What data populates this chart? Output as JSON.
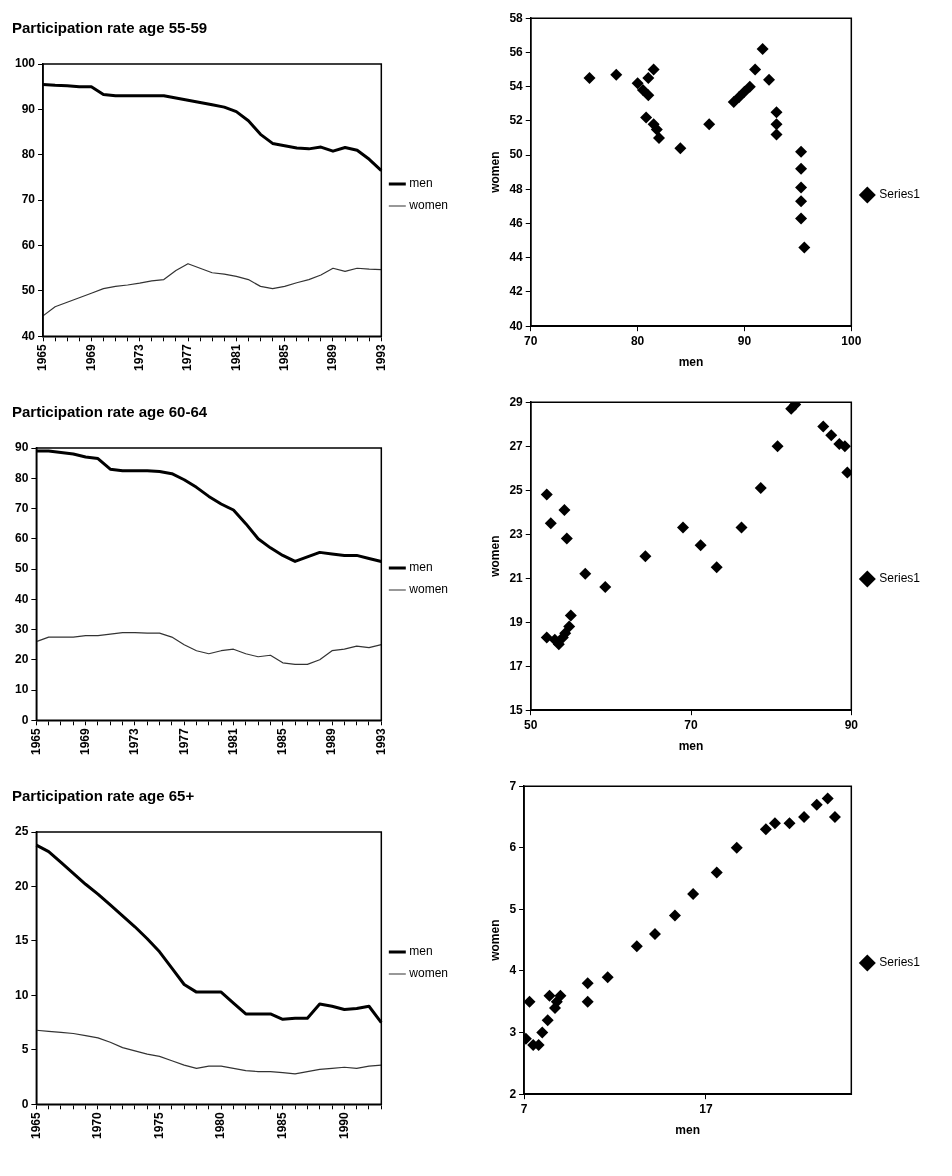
{
  "chart_data": [
    {
      "type": "line",
      "title": "Participation rate age 55-59",
      "categories": [
        "1965",
        null,
        null,
        null,
        "1969",
        null,
        null,
        null,
        "1973",
        null,
        null,
        null,
        "1977",
        null,
        null,
        null,
        "1981",
        null,
        null,
        null,
        "1985",
        null,
        null,
        null,
        "1989",
        null,
        null,
        null,
        "1993"
      ],
      "ylim": [
        40,
        100
      ],
      "yticks": [
        40,
        50,
        60,
        70,
        80,
        90,
        100
      ],
      "legend": "right",
      "series": [
        {
          "name": "men",
          "color": "#000000",
          "values": [
            95.5,
            95.3,
            95.2,
            95.0,
            95.0,
            93.3,
            93.0,
            93.0,
            93.0,
            93.0,
            93.0,
            92.5,
            92.0,
            91.5,
            91.0,
            90.5,
            89.5,
            87.5,
            84.5,
            82.5,
            82.0,
            81.5,
            81.3,
            81.7,
            80.8,
            81.6,
            81.0,
            79.0,
            76.5
          ]
        },
        {
          "name": "women",
          "color": "#333333",
          "values": [
            44.5,
            46.5,
            47.5,
            48.5,
            49.5,
            50.5,
            51,
            51.3,
            51.7,
            52.2,
            52.5,
            54.5,
            56,
            55,
            54,
            53.7,
            53.2,
            52.5,
            51,
            50.5,
            51,
            51.8,
            52.5,
            53.5,
            55,
            54.3,
            55,
            54.8,
            54.7
          ]
        }
      ]
    },
    {
      "type": "scatter",
      "xlabel": "men",
      "ylabel": "women",
      "xlim": [
        70,
        100
      ],
      "xticks": [
        70,
        80,
        90,
        100
      ],
      "ylim": [
        40,
        58
      ],
      "yticks": [
        40,
        42,
        44,
        46,
        48,
        50,
        52,
        54,
        56,
        58
      ],
      "legend": "right",
      "marker": "diamond",
      "series": [
        {
          "name": "Series1",
          "color": "#000000",
          "x": [
            75.5,
            78,
            80,
            80.5,
            81,
            81.5,
            81,
            80.8,
            81.5,
            82,
            84,
            86.7,
            89,
            89.5,
            90,
            90.5,
            91,
            91.7,
            92.3,
            93,
            93,
            93,
            95.3,
            95.3,
            95.3,
            95.3,
            95.3,
            95.6,
            81.8
          ],
          "values": [
            54.5,
            54.7,
            54.2,
            53.8,
            53.5,
            55,
            54.5,
            52.2,
            51.8,
            51,
            50.4,
            51.8,
            53.1,
            53.4,
            53.7,
            54,
            55,
            56.2,
            54.4,
            52.5,
            51.8,
            51.2,
            50.2,
            49.2,
            48.1,
            47.3,
            46.3,
            44.6,
            51.5
          ]
        }
      ]
    },
    {
      "type": "line",
      "title": "Participation rate age 60-64",
      "categories": [
        "1965",
        null,
        null,
        null,
        "1969",
        null,
        null,
        null,
        "1973",
        null,
        null,
        null,
        "1977",
        null,
        null,
        null,
        "1981",
        null,
        null,
        null,
        "1985",
        null,
        null,
        null,
        "1989",
        null,
        null,
        null,
        "1993"
      ],
      "ylim": [
        0,
        90
      ],
      "yticks": [
        0,
        10,
        20,
        30,
        40,
        50,
        60,
        70,
        80,
        90
      ],
      "legend": "right",
      "series": [
        {
          "name": "men",
          "color": "#000000",
          "values": [
            89,
            89,
            88.5,
            88,
            87,
            86.5,
            83,
            82.5,
            82.5,
            82.5,
            82.2,
            81.5,
            79.5,
            77,
            74,
            71.5,
            69.5,
            65,
            60,
            57,
            54.5,
            52.5,
            54,
            55.5,
            55,
            54.5,
            54.5,
            53.5,
            52.5
          ]
        },
        {
          "name": "women",
          "color": "#333333",
          "values": [
            26,
            27.5,
            27.5,
            27.5,
            28,
            28,
            28.5,
            29,
            29,
            28.8,
            28.8,
            27.5,
            25,
            23,
            22,
            23,
            23.5,
            22,
            21,
            21.5,
            19,
            18.5,
            18.5,
            20,
            23,
            23.5,
            24.5,
            24,
            25
          ]
        }
      ]
    },
    {
      "type": "scatter",
      "xlabel": "men",
      "ylabel": "women",
      "xlim": [
        50,
        90
      ],
      "xticks": [
        50,
        70,
        90
      ],
      "ylim": [
        15,
        29
      ],
      "yticks": [
        15,
        17,
        19,
        21,
        23,
        25,
        27,
        29
      ],
      "legend": "right",
      "marker": "diamond",
      "series": [
        {
          "name": "Series1",
          "color": "#000000",
          "x": [
            52,
            52.5,
            54.2,
            54.5,
            56.8,
            59.3,
            64.3,
            69,
            71.2,
            73.2,
            76.3,
            78.7,
            80.8,
            82.5,
            83,
            86.5,
            87.5,
            88.5,
            89.2,
            89.5,
            52,
            53,
            53.5,
            54.3,
            54.8,
            55,
            54
          ],
          "values": [
            24.8,
            23.5,
            24.1,
            22.8,
            21.2,
            20.6,
            22,
            23.3,
            22.5,
            21.5,
            23.3,
            25.1,
            27,
            28.7,
            28.9,
            27.9,
            27.5,
            27.1,
            27,
            25.8,
            18.3,
            18.2,
            18,
            18.5,
            18.8,
            19.3,
            18.3
          ]
        }
      ]
    },
    {
      "type": "line",
      "title": "Participation rate age 65+",
      "categories": [
        "1965",
        null,
        null,
        null,
        null,
        "1970",
        null,
        null,
        null,
        null,
        "1975",
        null,
        null,
        null,
        null,
        "1980",
        null,
        null,
        null,
        null,
        "1985",
        null,
        null,
        null,
        null,
        "1990",
        null,
        null,
        null
      ],
      "ylim": [
        0,
        25
      ],
      "yticks": [
        0,
        5,
        10,
        15,
        20,
        25
      ],
      "legend": "right",
      "series": [
        {
          "name": "men",
          "color": "#000000",
          "values": [
            23.8,
            23.2,
            22.2,
            21.2,
            20.2,
            19.3,
            18.3,
            17.3,
            16.3,
            15.2,
            14,
            12.5,
            11,
            10.3,
            10.3,
            10.3,
            9.3,
            8.3,
            8.3,
            8.3,
            7.8,
            7.9,
            7.9,
            9.2,
            9.0,
            8.7,
            8.8,
            9.0,
            7.5
          ]
        },
        {
          "name": "women",
          "color": "#333333",
          "values": [
            6.8,
            6.7,
            6.6,
            6.5,
            6.3,
            6.1,
            5.7,
            5.2,
            4.9,
            4.6,
            4.4,
            4.0,
            3.6,
            3.3,
            3.5,
            3.5,
            3.3,
            3.1,
            3.0,
            3.0,
            2.9,
            2.8,
            3.0,
            3.2,
            3.3,
            3.4,
            3.3,
            3.5,
            3.6
          ]
        }
      ]
    },
    {
      "type": "scatter",
      "xlabel": "men",
      "ylabel": "women",
      "xlim": [
        7,
        25
      ],
      "xticks": [
        7,
        17
      ],
      "ylim": [
        2,
        7
      ],
      "yticks": [
        2,
        3,
        4,
        5,
        6,
        7
      ],
      "legend": "right",
      "marker": "diamond",
      "series": [
        {
          "name": "Series1",
          "color": "#000000",
          "x": [
            7.3,
            7.1,
            7.5,
            7.8,
            8.0,
            8.3,
            8.7,
            8.4,
            9.0,
            8.8,
            10.5,
            10.5,
            11.6,
            13.2,
            14.2,
            15.3,
            16.3,
            17.6,
            18.7,
            20.3,
            20.8,
            21.6,
            22.4,
            23.1,
            23.7,
            24.1
          ],
          "values": [
            3.5,
            2.9,
            2.8,
            2.8,
            3.0,
            3.2,
            3.4,
            3.6,
            3.6,
            3.5,
            3.8,
            3.5,
            3.9,
            4.4,
            4.6,
            4.9,
            5.25,
            5.6,
            6.0,
            6.3,
            6.4,
            6.4,
            6.5,
            6.7,
            6.8,
            6.5
          ]
        }
      ]
    }
  ]
}
